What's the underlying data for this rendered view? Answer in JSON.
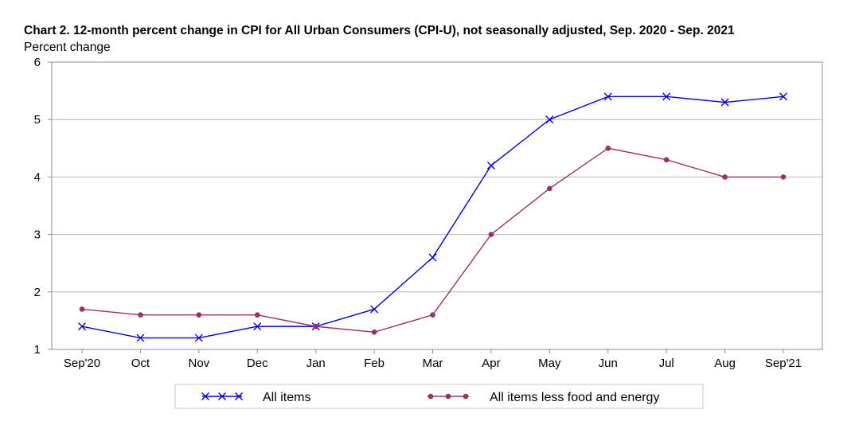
{
  "chart_data": {
    "type": "line",
    "title": "Chart 2. 12-month percent change in CPI for All Urban Consumers (CPI-U), not seasonally adjusted, Sep. 2020 - Sep. 2021",
    "ylabel": "Percent change",
    "xlabel": "",
    "categories": [
      "Sep'20",
      "Oct",
      "Nov",
      "Dec",
      "Jan",
      "Feb",
      "Mar",
      "Apr",
      "May",
      "Jun",
      "Jul",
      "Aug",
      "Sep'21"
    ],
    "ylim": [
      1,
      6
    ],
    "yticks": [
      1,
      2,
      3,
      4,
      5,
      6
    ],
    "grid": true,
    "legend_position": "bottom",
    "series": [
      {
        "name": "All items",
        "color": "#0000e6",
        "marker": "x",
        "values": [
          1.4,
          1.2,
          1.2,
          1.4,
          1.4,
          1.7,
          2.6,
          4.2,
          5.0,
          5.4,
          5.4,
          5.3,
          5.4
        ]
      },
      {
        "name": "All items less food and energy",
        "color": "#9b2e68",
        "marker": "circle",
        "values": [
          1.7,
          1.6,
          1.6,
          1.6,
          1.4,
          1.3,
          1.6,
          3.0,
          3.8,
          4.5,
          4.3,
          4.0,
          4.0
        ]
      }
    ]
  }
}
